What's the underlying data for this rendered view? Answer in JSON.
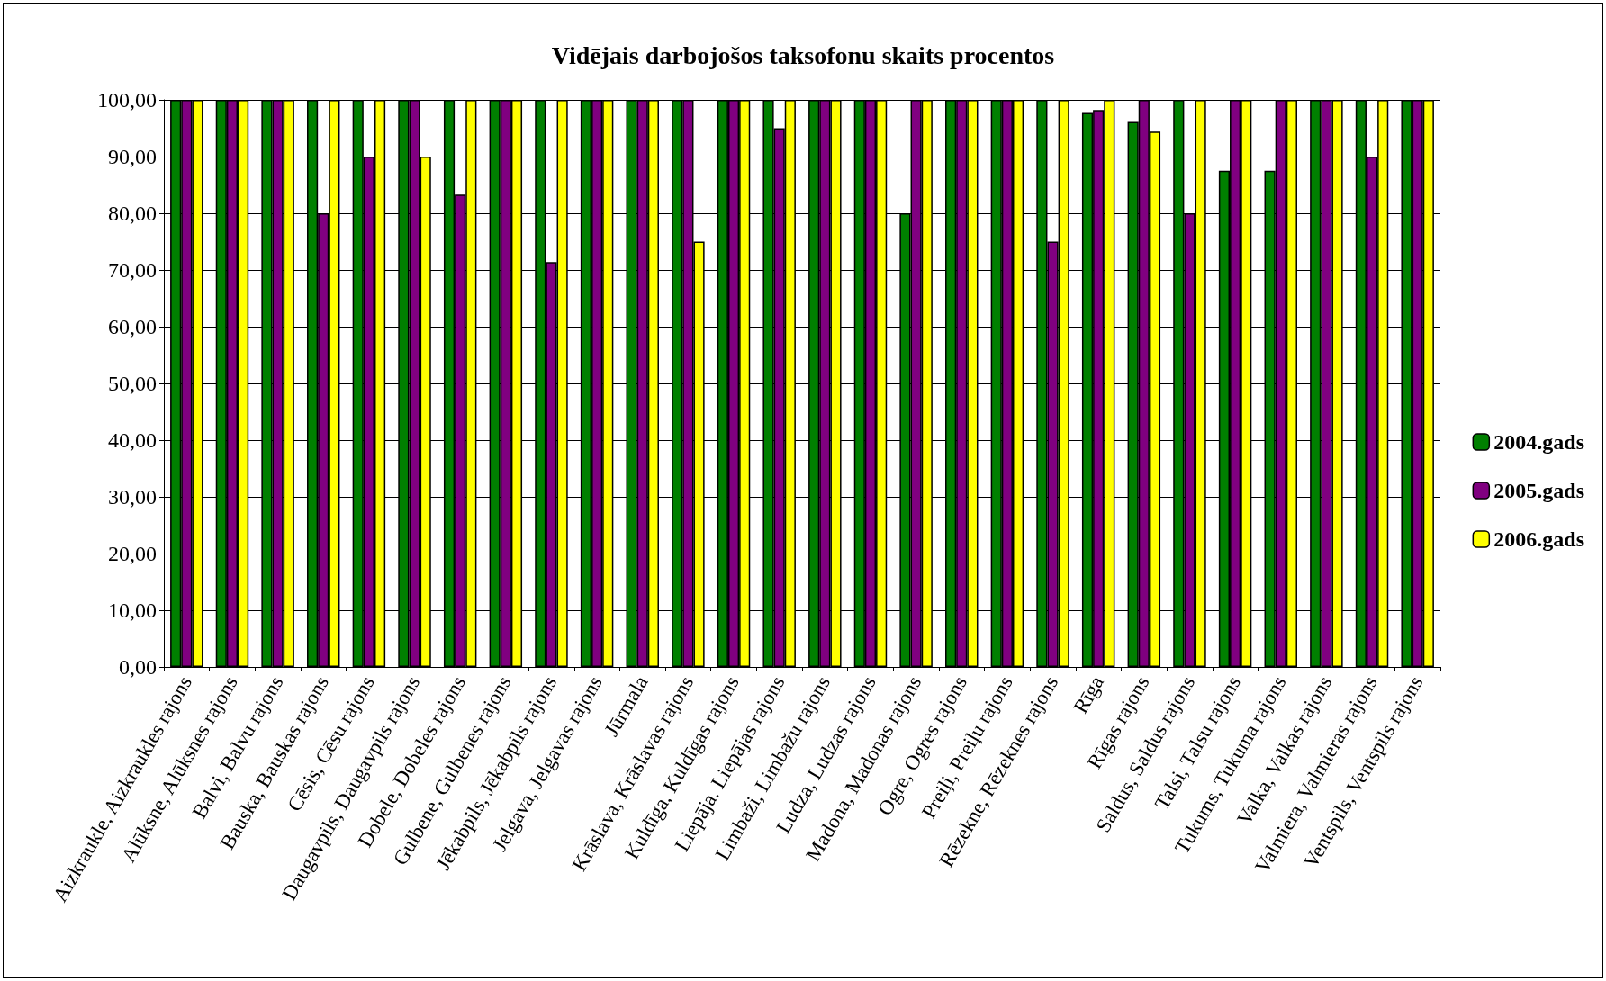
{
  "chart_data": {
    "type": "bar",
    "title": "Vidējais darbojošos taksofonu skaits procentos",
    "categories": [
      "Aizkraukle, Aizkraukles rajons",
      "Alūksne, Alūksnes rajons",
      "Balvi, Balvu rajons",
      "Bauska, Bauskas rajons",
      "Cēsis, Cēsu rajons",
      "Daugavpils, Daugavpils rajons",
      "Dobele, Dobeles rajons",
      "Gulbene, Gulbenes rajons",
      "Jēkabpils, Jēkabpils rajons",
      "Jelgava, Jelgavas rajons",
      "Jūrmala",
      "Krāslava, Krāslavas rajons",
      "Kuldīga, Kuldīgas rajons",
      "Liepāja. Liepājas rajons",
      "Limbaži, Limbažu rajons",
      "Ludza, Ludzas rajons",
      "Madona, Madonas rajons",
      "Ogre, Ogres rajons",
      "Preiļi, Preiļu rajons",
      "Rēzekne, Rēzeknes rajons",
      "Rīga",
      "Rīgas rajons",
      "Saldus, Saldus rajons",
      "Talsi, Talsu rajons",
      "Tukums, Tukuma rajons",
      "Valka, Valkas rajons",
      "Valmiera, Valmieras rajons",
      "Ventspils, Ventspils rajons"
    ],
    "series": [
      {
        "name": "2004.gads",
        "color": "#008000",
        "values": [
          100,
          100,
          100,
          100,
          100,
          100,
          100,
          100,
          100,
          100,
          100,
          100,
          100,
          100,
          100,
          100,
          80,
          100,
          100,
          100,
          97.7,
          96.1,
          100,
          87.5,
          87.5,
          100,
          100,
          100
        ]
      },
      {
        "name": "2005.gads",
        "color": "#800080",
        "values": [
          100,
          100,
          100,
          80,
          90,
          100,
          83.3,
          100,
          71.4,
          100,
          100,
          100,
          100,
          95,
          100,
          100,
          100,
          100,
          100,
          75,
          98.2,
          100,
          80,
          100,
          100,
          100,
          90,
          100
        ]
      },
      {
        "name": "2006.gads",
        "color": "#ffff00",
        "values": [
          100,
          100,
          100,
          100,
          100,
          90,
          100,
          100,
          100,
          100,
          100,
          75,
          100,
          100,
          100,
          100,
          100,
          100,
          100,
          100,
          100,
          94.4,
          100,
          100,
          100,
          100,
          100,
          100
        ]
      }
    ],
    "ylim": [
      0,
      100
    ],
    "yticks": [
      {
        "value": 0,
        "label": "0,00"
      },
      {
        "value": 10,
        "label": "10,00"
      },
      {
        "value": 20,
        "label": "20,00"
      },
      {
        "value": 30,
        "label": "30,00"
      },
      {
        "value": 40,
        "label": "40,00"
      },
      {
        "value": 50,
        "label": "50,00"
      },
      {
        "value": 60,
        "label": "60,00"
      },
      {
        "value": 70,
        "label": "70,00"
      },
      {
        "value": 80,
        "label": "80,00"
      },
      {
        "value": 90,
        "label": "90,00"
      },
      {
        "value": 100,
        "label": "100,00"
      }
    ],
    "grid": "y",
    "legend": "right"
  }
}
